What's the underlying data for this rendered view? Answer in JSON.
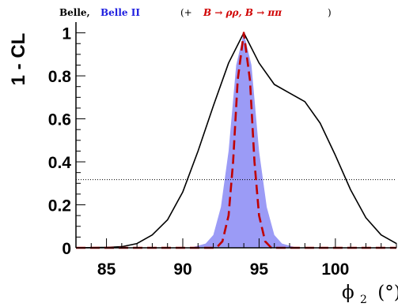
{
  "title": {
    "part1": "Belle,",
    "part2": "Belle II",
    "part3": "(+",
    "part4": "B → ρρ, B → ππ",
    "part5": ")"
  },
  "colors": {
    "part2": "#2020e0",
    "part4": "#d00000",
    "fill": "#9b9bf6",
    "dashed": "#c00000",
    "solid": "#000000"
  },
  "axes": {
    "ylabel": "1 - CL",
    "xlabel_main": "ϕ",
    "xlabel_sub": "2",
    "xlabel_unit": "(°)"
  },
  "chart_data": {
    "type": "line",
    "xlim": [
      83,
      104
    ],
    "ylim": [
      0,
      1.05
    ],
    "x_ticks": [
      85,
      90,
      95,
      100
    ],
    "x_tick_labels": [
      "85",
      "90",
      "95",
      "100"
    ],
    "y_ticks": [
      0,
      0.2,
      0.4,
      0.6,
      0.8,
      1
    ],
    "y_tick_labels": [
      "0",
      "0.2",
      "0.4",
      "0.6",
      "0.8",
      "1"
    ],
    "reference_line_y": 0.317,
    "series": [
      {
        "style": "solid-line",
        "x": [
          83,
          85,
          86,
          87,
          88,
          89,
          90,
          91,
          92,
          93,
          94,
          95,
          96,
          97,
          98,
          99,
          100,
          101,
          102,
          103,
          104
        ],
        "y": [
          0.0,
          0.002,
          0.005,
          0.02,
          0.06,
          0.13,
          0.26,
          0.45,
          0.66,
          0.86,
          1.0,
          0.86,
          0.76,
          0.72,
          0.68,
          0.58,
          0.43,
          0.27,
          0.14,
          0.06,
          0.02
        ]
      },
      {
        "style": "filled-area",
        "x": [
          90.5,
          91.5,
          92.0,
          92.5,
          93.0,
          93.5,
          94.0,
          94.5,
          95.0,
          95.5,
          96.0,
          96.5,
          97.5
        ],
        "y": [
          0.0,
          0.02,
          0.06,
          0.19,
          0.45,
          0.85,
          1.0,
          0.85,
          0.45,
          0.19,
          0.06,
          0.02,
          0.0
        ]
      },
      {
        "style": "dashed-line",
        "x": [
          83,
          92.2,
          92.6,
          93.0,
          93.3,
          93.6,
          94.0,
          94.4,
          94.7,
          95.0,
          95.4,
          95.8,
          104
        ],
        "y": [
          0.0,
          0.0,
          0.03,
          0.15,
          0.4,
          0.78,
          1.0,
          0.78,
          0.4,
          0.15,
          0.03,
          0.0,
          0.0
        ]
      }
    ]
  }
}
